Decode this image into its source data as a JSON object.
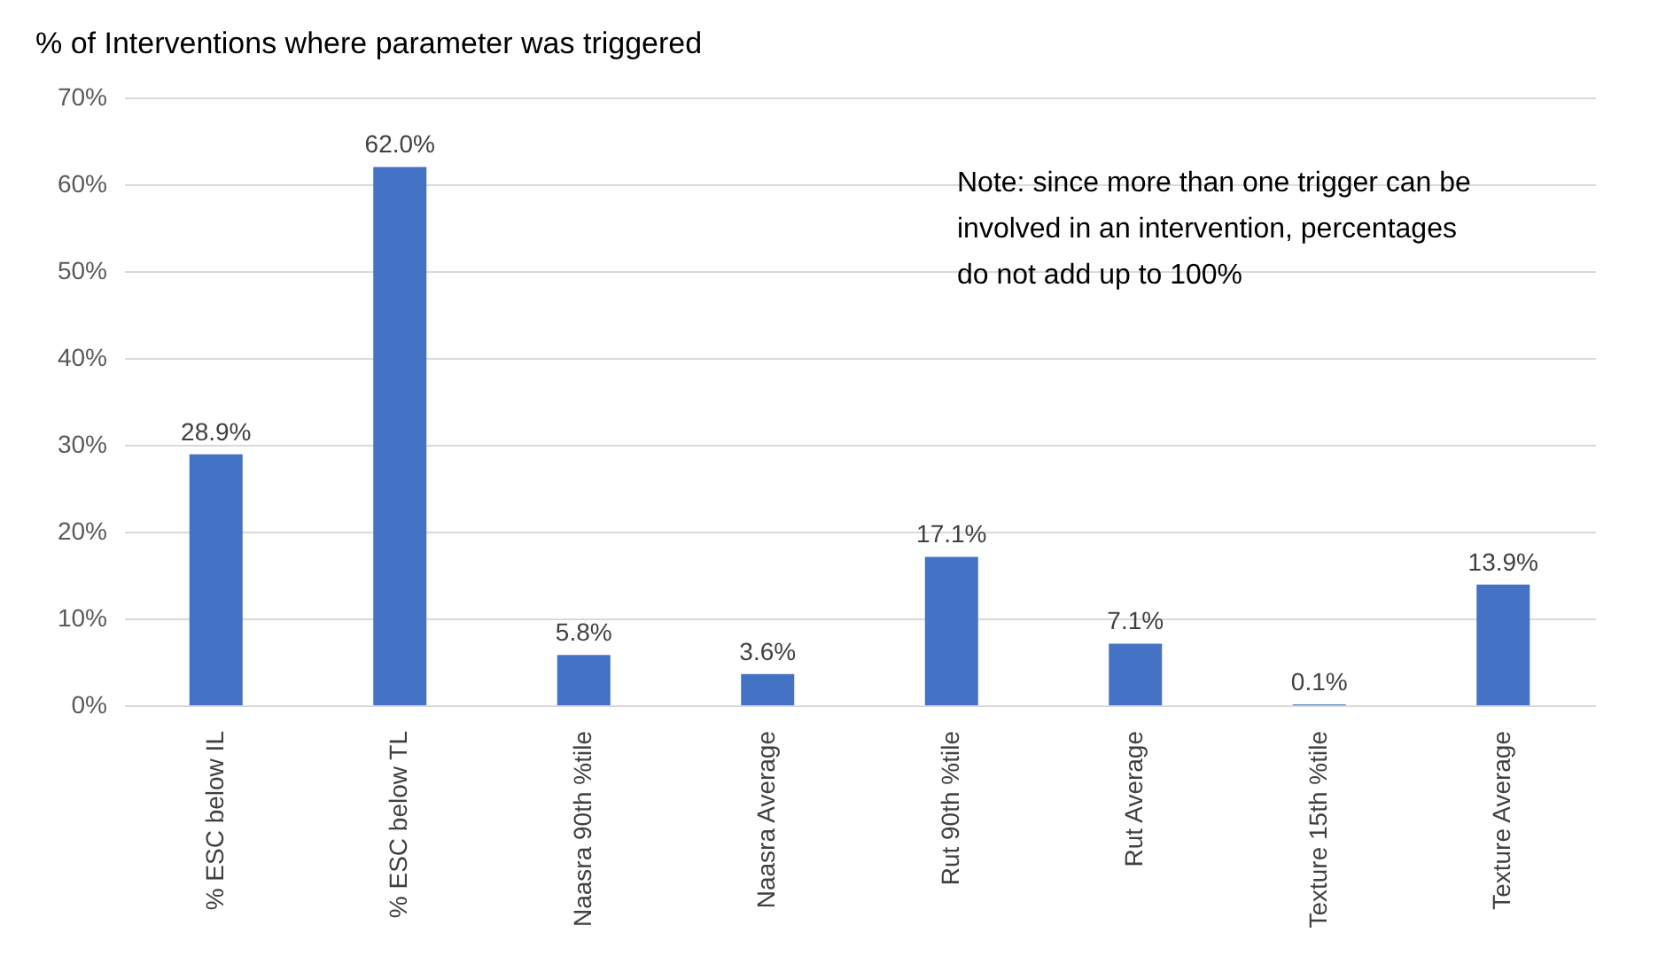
{
  "chart_data": {
    "type": "bar",
    "title": "% of Interventions where parameter was triggered",
    "categories": [
      "% ESC below IL",
      "% ESC below TL",
      "Naasra 90th %tile",
      "Naasra Average",
      "Rut 90th %tile",
      "Rut Average",
      "Texture 15th %tile",
      "Texture Average"
    ],
    "values": [
      28.9,
      62.0,
      5.8,
      3.6,
      17.1,
      7.1,
      0.1,
      13.9
    ],
    "value_labels": [
      "28.9%",
      "62.0%",
      "5.8%",
      "3.6%",
      "17.1%",
      "7.1%",
      "0.1%",
      "13.9%"
    ],
    "color": "#4472c4",
    "ylim": [
      0,
      70
    ],
    "yticks": [
      {
        "value": 0,
        "label": "0%"
      },
      {
        "value": 10,
        "label": "10%"
      },
      {
        "value": 20,
        "label": "20%"
      },
      {
        "value": 30,
        "label": "30%"
      },
      {
        "value": 40,
        "label": "40%"
      },
      {
        "value": 50,
        "label": "50%"
      },
      {
        "value": 60,
        "label": "60%"
      },
      {
        "value": 70,
        "label": "70%"
      }
    ],
    "grid": "y",
    "annotations": [
      "Note: since more than one trigger can be involved in an intervention, percentages do not add up to 100%"
    ]
  }
}
